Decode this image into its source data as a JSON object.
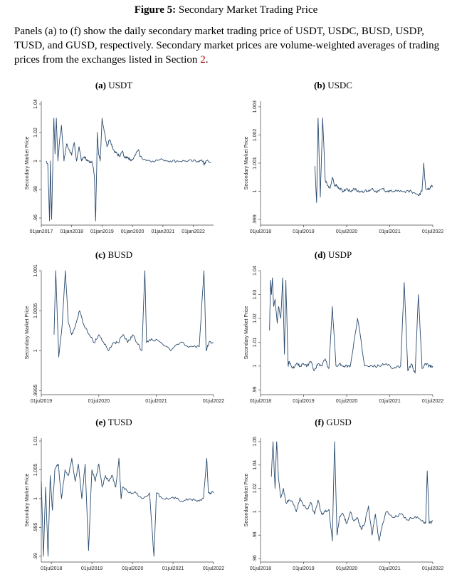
{
  "figure": {
    "label": "Figure 5:",
    "title": "Secondary Market Trading Price",
    "caption_main": "Panels (a) to (f) show the daily secondary market trading price of USDT, USDC, BUSD, USDP, TUSD, and GUSD, respectively. Secondary market prices are volume-weighted averages of trading prices from the exchanges listed in Section ",
    "caption_ref": "2",
    "caption_end": "."
  },
  "chart_data": [
    {
      "type": "line",
      "panel_label": "(a)",
      "title": "USDT",
      "ylabel": "Secondary Market Price",
      "xlabel": "",
      "color": "#2b4c6f",
      "xlim": [
        "2017-01-01",
        "2022-09-01"
      ],
      "ylim": [
        0.955,
        1.042
      ],
      "yticks": [
        {
          "v": 0.96,
          "l": ".96"
        },
        {
          "v": 0.98,
          "l": ".98"
        },
        {
          "v": 1,
          "l": "1"
        },
        {
          "v": 1.02,
          "l": "1.02"
        },
        {
          "v": 1.04,
          "l": "1.04"
        }
      ],
      "xticks": [
        {
          "d": "2017-01-01",
          "l": "01jan2017"
        },
        {
          "d": "2018-01-01",
          "l": "01jan2018"
        },
        {
          "d": "2019-01-01",
          "l": "01jan2019"
        },
        {
          "d": "2020-01-01",
          "l": "01jan2020"
        },
        {
          "d": "2021-01-01",
          "l": "01jan2021"
        },
        {
          "d": "2022-01-01",
          "l": "01jan2022"
        }
      ],
      "series": [
        {
          "x": [
            "2017-03-01",
            "2017-03-20",
            "2017-04-10",
            "2017-04-20",
            "2017-05-05",
            "2017-05-20",
            "2017-06-01",
            "2017-06-15",
            "2017-07-01",
            "2017-07-20",
            "2017-08-10",
            "2017-09-01",
            "2017-10-01",
            "2017-11-01",
            "2017-12-01",
            "2018-01-01",
            "2018-02-01",
            "2018-03-01",
            "2018-04-01",
            "2018-05-01",
            "2018-06-01",
            "2018-07-01",
            "2018-08-01",
            "2018-09-01",
            "2018-10-01",
            "2018-10-15",
            "2018-10-25",
            "2018-11-05",
            "2018-11-20",
            "2018-12-10",
            "2019-01-01",
            "2019-02-01",
            "2019-03-01",
            "2019-04-01",
            "2019-05-01",
            "2019-06-01",
            "2019-07-01",
            "2019-08-01",
            "2019-09-01",
            "2019-10-01",
            "2019-11-01",
            "2019-12-01",
            "2020-01-01",
            "2020-03-15",
            "2020-04-01",
            "2020-06-01",
            "2020-09-01",
            "2021-01-01",
            "2021-04-01",
            "2021-07-01",
            "2021-10-01",
            "2022-01-01",
            "2022-03-01",
            "2022-05-01",
            "2022-05-12",
            "2022-06-01",
            "2022-08-01"
          ],
          "y": [
            1.0,
            0.998,
            0.958,
            1.0,
            0.959,
            1.0,
            1.03,
            1.005,
            1.03,
            1.0,
            1.015,
            1.025,
            1.0,
            1.012,
            1.008,
            1.004,
            1.013,
            1.0,
            1.01,
            1.0,
            1.003,
            1.001,
            0.999,
            1.0,
            0.99,
            0.958,
            0.985,
            1.02,
            1.005,
            1.0,
            1.03,
            1.02,
            1.01,
            1.015,
            1.01,
            1.006,
            1.005,
            1.003,
            1.007,
            1.002,
            1.003,
            1.001,
            1.001,
            1.008,
            1.003,
            1.001,
            1.0,
            1.001,
            1.0,
            1.0,
            1.0,
            1.0,
            1.0,
            1.0,
            0.997,
            1.0,
            0.999
          ]
        }
      ]
    },
    {
      "type": "line",
      "panel_label": "(b)",
      "title": "USDC",
      "ylabel": "Secondary Market Price",
      "xlabel": "",
      "color": "#2b4c6f",
      "xlim": [
        "2018-07-01",
        "2022-07-01"
      ],
      "ylim": [
        0.9988,
        1.0032
      ],
      "yticks": [
        {
          "v": 0.999,
          "l": ".999"
        },
        {
          "v": 1,
          "l": "1"
        },
        {
          "v": 1.001,
          "l": "1.001"
        },
        {
          "v": 1.002,
          "l": "1.002"
        },
        {
          "v": 1.003,
          "l": "1.003"
        }
      ],
      "xticks": [
        {
          "d": "2018-07-01",
          "l": "01jul2018"
        },
        {
          "d": "2019-07-01",
          "l": "01jul2019"
        },
        {
          "d": "2020-07-01",
          "l": "01jul2020"
        },
        {
          "d": "2021-07-01",
          "l": "01jul2021"
        },
        {
          "d": "2022-07-01",
          "l": "01jul2022"
        }
      ],
      "series": [
        {
          "x": [
            "2019-10-05",
            "2019-10-20",
            "2019-11-01",
            "2019-11-20",
            "2019-12-10",
            "2020-01-01",
            "2020-01-20",
            "2020-02-10",
            "2020-03-01",
            "2020-03-20",
            "2020-04-10",
            "2020-05-01",
            "2020-06-01",
            "2020-07-01",
            "2020-08-01",
            "2020-09-01",
            "2020-10-01",
            "2020-11-01",
            "2020-12-01",
            "2021-01-01",
            "2021-02-01",
            "2021-03-01",
            "2021-04-01",
            "2021-05-01",
            "2021-06-01",
            "2021-07-01",
            "2021-09-01",
            "2021-11-01",
            "2022-01-01",
            "2022-03-01",
            "2022-04-01",
            "2022-04-15",
            "2022-05-01",
            "2022-06-01",
            "2022-07-01"
          ],
          "y": [
            1.0009,
            0.9996,
            1.0026,
            0.9998,
            1.0026,
            1.0004,
            1.0002,
            1.0001,
            1.0005,
            1.0002,
            1.0002,
            1.0001,
            1.0,
            1.0001,
            1.0,
            1.0001,
            1.0,
            1.0,
            1.0,
            1.0,
            1.0001,
            1.0,
            1.0,
            1.0001,
            1.0,
            1.0,
            1.0,
            1.0,
            1.0,
            0.99985,
            1.0,
            1.001,
            1.0001,
            1.0001,
            1.0002
          ]
        }
      ]
    },
    {
      "type": "line",
      "panel_label": "(c)",
      "title": "BUSD",
      "ylabel": "Secondary Market Price",
      "xlabel": "",
      "color": "#2b4c6f",
      "xlim": [
        "2019-07-01",
        "2022-07-01"
      ],
      "ylim": [
        0.99945,
        1.001
      ],
      "yticks": [
        {
          "v": 0.9995,
          "l": ".9995"
        },
        {
          "v": 1,
          "l": "1"
        },
        {
          "v": 1.0005,
          "l": "1.0005"
        },
        {
          "v": 1.001,
          "l": "1.001"
        }
      ],
      "xticks": [
        {
          "d": "2019-07-01",
          "l": "01jul2019"
        },
        {
          "d": "2020-07-01",
          "l": "01jul2020"
        },
        {
          "d": "2021-07-01",
          "l": "01jul2021"
        },
        {
          "d": "2022-07-01",
          "l": "01jul2022"
        }
      ],
      "series": [
        {
          "x": [
            "2019-09-20",
            "2019-10-01",
            "2019-10-20",
            "2019-11-10",
            "2019-12-01",
            "2019-12-20",
            "2020-01-10",
            "2020-02-01",
            "2020-03-01",
            "2020-04-01",
            "2020-05-01",
            "2020-06-01",
            "2020-07-01",
            "2020-08-01",
            "2020-09-01",
            "2020-10-01",
            "2020-11-01",
            "2020-12-01",
            "2021-01-01",
            "2021-02-01",
            "2021-03-01",
            "2021-04-01",
            "2021-04-20",
            "2021-05-01",
            "2021-06-01",
            "2021-08-01",
            "2021-10-01",
            "2021-12-01",
            "2022-02-01",
            "2022-04-01",
            "2022-05-01",
            "2022-05-15",
            "2022-06-01",
            "2022-07-01"
          ],
          "y": [
            1.0002,
            1.001,
            0.99992,
            1.0003,
            1.001,
            1.00035,
            1.0002,
            1.0003,
            1.0005,
            1.0003,
            1.0002,
            1.0001,
            1.0002,
            1.0001,
            1.0,
            1.0001,
            1.0001,
            1.0002,
            1.0001,
            1.0002,
            1.0001,
            1.0,
            1.001,
            1.0001,
            1.00015,
            1.0001,
            1.0,
            1.0001,
            1.00005,
            1.00005,
            1.001,
            1.0,
            1.0001,
            1.0001
          ]
        }
      ]
    },
    {
      "type": "line",
      "panel_label": "(d)",
      "title": "USDP",
      "ylabel": "Secondary Market Price",
      "xlabel": "",
      "color": "#2b4c6f",
      "xlim": [
        "2018-07-01",
        "2022-07-01"
      ],
      "ylim": [
        0.988,
        1.04
      ],
      "yticks": [
        {
          "v": 0.99,
          "l": ".99"
        },
        {
          "v": 1,
          "l": "1"
        },
        {
          "v": 1.01,
          "l": "1.01"
        },
        {
          "v": 1.02,
          "l": "1.02"
        },
        {
          "v": 1.03,
          "l": "1.03"
        },
        {
          "v": 1.04,
          "l": "1.04"
        }
      ],
      "xticks": [
        {
          "d": "2018-07-01",
          "l": "01jul2018"
        },
        {
          "d": "2019-07-01",
          "l": "01jul2019"
        },
        {
          "d": "2020-07-01",
          "l": "01jul2020"
        },
        {
          "d": "2021-07-01",
          "l": "01jul2021"
        },
        {
          "d": "2022-07-01",
          "l": "01jul2022"
        }
      ],
      "series": [
        {
          "x": [
            "2018-09-15",
            "2018-09-25",
            "2018-10-01",
            "2018-10-10",
            "2018-10-20",
            "2018-11-01",
            "2018-11-20",
            "2018-12-01",
            "2018-12-20",
            "2019-01-05",
            "2019-01-20",
            "2019-02-01",
            "2019-02-20",
            "2019-03-01",
            "2019-04-01",
            "2019-05-01",
            "2019-06-01",
            "2019-07-01",
            "2019-08-01",
            "2019-09-01",
            "2019-10-01",
            "2019-11-01",
            "2019-12-01",
            "2020-01-01",
            "2020-02-01",
            "2020-03-01",
            "2020-04-01",
            "2020-05-01",
            "2020-06-01",
            "2020-07-01",
            "2020-08-01",
            "2020-10-01",
            "2020-12-01",
            "2021-02-01",
            "2021-04-01",
            "2021-06-01",
            "2021-08-01",
            "2021-10-01",
            "2021-11-01",
            "2021-12-01",
            "2022-01-01",
            "2022-02-01",
            "2022-03-01",
            "2022-04-01",
            "2022-05-01",
            "2022-06-01",
            "2022-07-01"
          ],
          "y": [
            1.015,
            1.036,
            1.03,
            1.037,
            1.025,
            1.028,
            1.018,
            1.025,
            1.02,
            1.037,
            1.005,
            1.036,
            1.0,
            1.002,
            0.999,
            1.001,
            1.0,
            1.001,
            1.0,
            1.002,
            0.998,
            1.001,
            1.0,
            1.003,
            0.999,
            1.025,
            1.0,
            1.001,
            1.0,
            1.0,
            1.0,
            1.02,
            1.0,
            1.0,
            1.0,
            1.001,
            0.999,
            1.0,
            1.035,
            0.998,
            1.001,
            0.997,
            1.03,
            0.999,
            1.001,
            1.0,
            1.0
          ]
        }
      ]
    },
    {
      "type": "line",
      "panel_label": "(e)",
      "title": "TUSD",
      "ylabel": "Secondary Market Price",
      "xlabel": "",
      "color": "#2b4c6f",
      "xlim": [
        "2018-04-01",
        "2022-07-01"
      ],
      "ylim": [
        0.989,
        1.0105
      ],
      "yticks": [
        {
          "v": 0.99,
          "l": ".99"
        },
        {
          "v": 0.995,
          "l": ".995"
        },
        {
          "v": 1,
          "l": "1"
        },
        {
          "v": 1.005,
          "l": "1.005"
        },
        {
          "v": 1.01,
          "l": "1.01"
        }
      ],
      "xticks": [
        {
          "d": "2018-07-01",
          "l": "01jul2018"
        },
        {
          "d": "2019-07-01",
          "l": "01jul2019"
        },
        {
          "d": "2020-07-01",
          "l": "01jul2020"
        },
        {
          "d": "2021-07-01",
          "l": "01jul2021"
        },
        {
          "d": "2022-07-01",
          "l": "01jul2022"
        }
      ],
      "series": [
        {
          "x": [
            "2018-04-01",
            "2018-04-20",
            "2018-05-10",
            "2018-06-01",
            "2018-06-20",
            "2018-07-10",
            "2018-08-01",
            "2018-09-01",
            "2018-10-01",
            "2018-11-01",
            "2018-12-01",
            "2019-01-01",
            "2019-02-01",
            "2019-03-01",
            "2019-04-01",
            "2019-05-01",
            "2019-06-01",
            "2019-07-01",
            "2019-08-01",
            "2019-09-01",
            "2019-10-01",
            "2019-11-01",
            "2019-12-01",
            "2020-01-01",
            "2020-02-01",
            "2020-03-01",
            "2020-03-20",
            "2020-04-01",
            "2020-06-01",
            "2020-08-01",
            "2020-10-01",
            "2020-12-01",
            "2021-01-10",
            "2021-02-01",
            "2021-04-01",
            "2021-06-01",
            "2021-08-01",
            "2021-10-01",
            "2021-12-01",
            "2022-02-01",
            "2022-04-01",
            "2022-05-01",
            "2022-05-15",
            "2022-06-01",
            "2022-07-01"
          ],
          "y": [
            1.003,
            0.99,
            1.002,
            0.99,
            1.004,
            0.998,
            1.005,
            1.006,
            1.0,
            1.005,
            1.004,
            1.007,
            1.003,
            1.006,
            1.0,
            1.006,
            0.991,
            1.005,
            1.003,
            1.006,
            1.002,
            1.004,
            1.003,
            1.004,
            1.002,
            1.007,
            1.0,
            1.002,
            1.001,
            1.001,
            1.0,
            1.001,
            0.99,
            1.001,
            1.0,
            1.0,
            1.0,
            0.9995,
            1.0,
            0.9995,
            1.0,
            1.007,
            1.001,
            1.001,
            1.001
          ]
        }
      ]
    },
    {
      "type": "line",
      "panel_label": "(f)",
      "title": "GUSD",
      "ylabel": "Secondary Market Price",
      "xlabel": "",
      "color": "#2b4c6f",
      "xlim": [
        "2018-07-01",
        "2022-07-01"
      ],
      "ylim": [
        0.957,
        1.063
      ],
      "yticks": [
        {
          "v": 0.96,
          "l": ".96"
        },
        {
          "v": 0.98,
          "l": ".98"
        },
        {
          "v": 1,
          "l": "1"
        },
        {
          "v": 1.02,
          "l": "1.02"
        },
        {
          "v": 1.04,
          "l": "1.04"
        },
        {
          "v": 1.06,
          "l": "1.06"
        }
      ],
      "xticks": [
        {
          "d": "2018-07-01",
          "l": "01jul2018"
        },
        {
          "d": "2019-07-01",
          "l": "01jul2019"
        },
        {
          "d": "2020-07-01",
          "l": "01jul2020"
        },
        {
          "d": "2021-07-01",
          "l": "01jul2021"
        },
        {
          "d": "2022-07-01",
          "l": "01jul2022"
        }
      ],
      "series": [
        {
          "x": [
            "2018-10-01",
            "2018-10-15",
            "2018-11-01",
            "2018-11-15",
            "2018-12-01",
            "2018-12-20",
            "2019-01-10",
            "2019-02-01",
            "2019-03-01",
            "2019-04-01",
            "2019-05-01",
            "2019-06-01",
            "2019-07-01",
            "2019-08-01",
            "2019-09-01",
            "2019-10-01",
            "2019-11-01",
            "2019-12-01",
            "2020-01-01",
            "2020-02-01",
            "2020-03-01",
            "2020-03-20",
            "2020-04-10",
            "2020-05-01",
            "2020-06-01",
            "2020-07-01",
            "2020-08-01",
            "2020-09-01",
            "2020-10-01",
            "2020-11-01",
            "2020-12-01",
            "2021-01-01",
            "2021-02-01",
            "2021-03-01",
            "2021-04-01",
            "2021-05-01",
            "2021-06-01",
            "2021-08-01",
            "2021-10-01",
            "2021-12-01",
            "2022-02-01",
            "2022-04-01",
            "2022-05-01",
            "2022-05-15",
            "2022-06-01",
            "2022-07-01"
          ],
          "y": [
            1.03,
            1.06,
            1.02,
            1.06,
            1.028,
            1.012,
            1.02,
            1.008,
            1.01,
            1.008,
            1.0,
            1.012,
            1.005,
            1.002,
            1.008,
            0.998,
            1.01,
            0.998,
            1.0,
            1.002,
            0.975,
            1.06,
            0.98,
            0.996,
            0.998,
            0.99,
            1.0,
            0.992,
            0.995,
            0.985,
            0.99,
            1.005,
            0.98,
            0.998,
            0.975,
            0.99,
            1.0,
            0.995,
            0.998,
            0.993,
            0.996,
            0.992,
            0.99,
            1.035,
            0.99,
            0.992
          ]
        }
      ]
    }
  ]
}
